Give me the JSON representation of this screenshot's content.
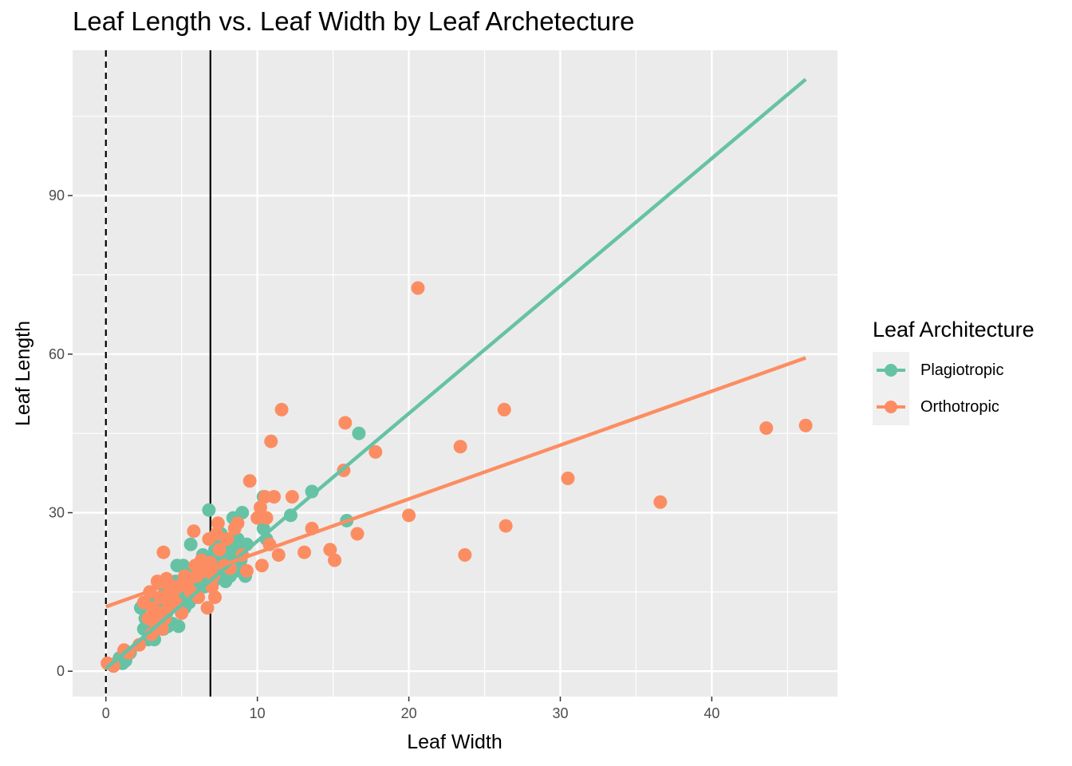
{
  "chart_data": {
    "type": "scatter",
    "title": "Leaf Length vs. Leaf Width by Leaf Archetecture",
    "xlabel": "Leaf Width",
    "ylabel": "Leaf Length",
    "xlim": [
      -2.2,
      48.3
    ],
    "ylim": [
      -4.8,
      117.5
    ],
    "x_ticks": [
      0,
      10,
      20,
      30,
      40
    ],
    "y_ticks": [
      0,
      30,
      60,
      90
    ],
    "grid": true,
    "legend": {
      "title": "Leaf Architecture",
      "placement": "right",
      "entries": [
        "Plagiotropic",
        "Orthotropic"
      ]
    },
    "reference_lines": [
      {
        "x": 0,
        "style": "dashed"
      },
      {
        "x": 6.9,
        "style": "solid"
      }
    ],
    "series": [
      {
        "name": "Plagiotropic",
        "color": "#66c2a5",
        "trend": {
          "x": [
            0,
            46.2
          ],
          "y": [
            0.5,
            112
          ]
        },
        "points": [
          [
            0.5,
            1
          ],
          [
            0.9,
            2.5
          ],
          [
            1.1,
            1.5
          ],
          [
            1.3,
            2
          ],
          [
            0.7,
            1.5
          ],
          [
            1.6,
            3.5
          ],
          [
            2.3,
            12
          ],
          [
            2.5,
            8
          ],
          [
            2.6,
            10
          ],
          [
            2.8,
            6
          ],
          [
            3,
            12.5
          ],
          [
            3.2,
            6
          ],
          [
            3.3,
            9
          ],
          [
            3.4,
            13
          ],
          [
            3.5,
            10
          ],
          [
            3.6,
            12
          ],
          [
            3.8,
            8
          ],
          [
            3.9,
            15
          ],
          [
            4,
            11
          ],
          [
            4.1,
            8.5
          ],
          [
            4.3,
            13
          ],
          [
            4.4,
            9
          ],
          [
            4.6,
            17
          ],
          [
            4.7,
            20
          ],
          [
            4.8,
            8.5
          ],
          [
            5,
            14
          ],
          [
            5.1,
            20
          ],
          [
            5.2,
            12
          ],
          [
            5.4,
            16
          ],
          [
            5.5,
            13
          ],
          [
            5.6,
            24
          ],
          [
            5.8,
            19
          ],
          [
            5.9,
            15
          ],
          [
            6.1,
            17
          ],
          [
            6.2,
            20
          ],
          [
            6.4,
            22
          ],
          [
            6.5,
            16
          ],
          [
            6.7,
            18
          ],
          [
            6.8,
            30.5
          ],
          [
            6.9,
            19
          ],
          [
            7.0,
            21
          ],
          [
            7.1,
            17
          ],
          [
            7.2,
            23
          ],
          [
            7.3,
            19
          ],
          [
            7.4,
            24
          ],
          [
            7.5,
            21
          ],
          [
            7.6,
            26
          ],
          [
            7.7,
            19
          ],
          [
            7.8,
            22
          ],
          [
            7.9,
            17
          ],
          [
            8,
            20
          ],
          [
            8.1,
            24
          ],
          [
            8.2,
            18
          ],
          [
            8.3,
            21
          ],
          [
            8.4,
            29
          ],
          [
            8.5,
            22
          ],
          [
            8.6,
            19
          ],
          [
            8.7,
            25
          ],
          [
            8.8,
            23
          ],
          [
            8.9,
            21
          ],
          [
            9,
            30
          ],
          [
            9.2,
            18
          ],
          [
            9.3,
            24
          ],
          [
            10.4,
            33
          ],
          [
            10.6,
            25
          ],
          [
            10.4,
            27
          ],
          [
            12.2,
            29.5
          ],
          [
            13.6,
            34
          ],
          [
            15.9,
            28.5
          ],
          [
            16.7,
            45
          ]
        ]
      },
      {
        "name": "Orthotropic",
        "color": "#fc8d62",
        "trend": {
          "x": [
            0,
            46.2
          ],
          "y": [
            12.2,
            59.3
          ]
        },
        "points": [
          [
            0.1,
            1.5
          ],
          [
            0.5,
            1
          ],
          [
            1.2,
            4
          ],
          [
            1.5,
            3.5
          ],
          [
            2.2,
            5
          ],
          [
            2.5,
            13
          ],
          [
            2.8,
            10
          ],
          [
            2.9,
            15
          ],
          [
            3.0,
            7
          ],
          [
            3.1,
            12
          ],
          [
            3.3,
            9
          ],
          [
            3.4,
            17
          ],
          [
            3.5,
            11
          ],
          [
            3.6,
            14
          ],
          [
            3.7,
            8
          ],
          [
            3.8,
            22.5
          ],
          [
            3.9,
            10
          ],
          [
            4.0,
            17.5
          ],
          [
            4.1,
            12
          ],
          [
            4.2,
            15
          ],
          [
            4.4,
            14
          ],
          [
            4.6,
            13
          ],
          [
            4.8,
            16
          ],
          [
            5.0,
            11
          ],
          [
            5.2,
            18
          ],
          [
            5.4,
            17
          ],
          [
            5.6,
            15
          ],
          [
            5.8,
            26.5
          ],
          [
            5.9,
            20
          ],
          [
            6.0,
            18
          ],
          [
            6.1,
            14
          ],
          [
            6.3,
            21
          ],
          [
            6.5,
            19
          ],
          [
            6.7,
            12
          ],
          [
            6.8,
            25
          ],
          [
            6.9,
            20.5
          ],
          [
            7.0,
            16
          ],
          [
            7.1,
            18
          ],
          [
            7.2,
            14
          ],
          [
            7.3,
            26
          ],
          [
            7.4,
            28
          ],
          [
            7.5,
            23
          ],
          [
            7.8,
            20
          ],
          [
            8.0,
            25
          ],
          [
            8.2,
            19.5
          ],
          [
            8.5,
            27
          ],
          [
            8.7,
            28
          ],
          [
            9.0,
            22
          ],
          [
            9.3,
            19
          ],
          [
            9.5,
            36
          ],
          [
            10.0,
            29
          ],
          [
            10.2,
            31
          ],
          [
            10.3,
            20
          ],
          [
            10.5,
            33
          ],
          [
            10.6,
            29
          ],
          [
            10.8,
            24
          ],
          [
            10.9,
            43.5
          ],
          [
            11.1,
            33
          ],
          [
            11.4,
            22
          ],
          [
            11.6,
            49.5
          ],
          [
            12.3,
            33
          ],
          [
            13.1,
            22.5
          ],
          [
            13.6,
            27
          ],
          [
            14.8,
            23
          ],
          [
            15.1,
            21
          ],
          [
            15.7,
            38
          ],
          [
            15.8,
            47
          ],
          [
            16.6,
            26
          ],
          [
            17.8,
            41.5
          ],
          [
            20.0,
            29.5
          ],
          [
            20.6,
            72.5
          ],
          [
            23.4,
            42.5
          ],
          [
            23.7,
            22
          ],
          [
            26.3,
            49.5
          ],
          [
            26.4,
            27.5
          ],
          [
            30.5,
            36.5
          ],
          [
            36.6,
            32
          ],
          [
            43.6,
            46
          ],
          [
            46.2,
            46.5
          ]
        ]
      }
    ]
  }
}
